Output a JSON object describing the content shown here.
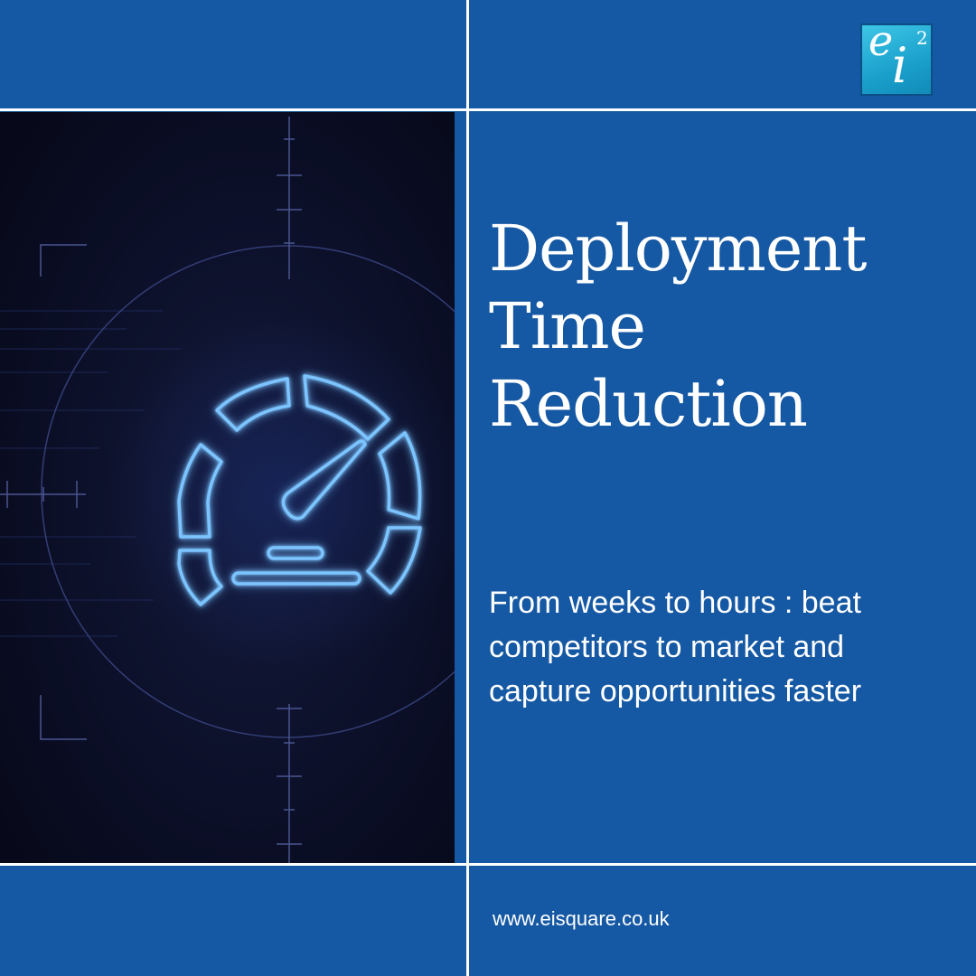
{
  "brand": {
    "logo_text": "ei",
    "logo_superscript": "2",
    "website": "www.eisquare.co.uk"
  },
  "main": {
    "title_lines": [
      "Deployment",
      "Time",
      "Reduction"
    ],
    "subtitle_lines": [
      "From weeks to hours : beat",
      "competitors to market and",
      "capture opportunities faster"
    ]
  },
  "illustration": {
    "subject": "speedometer-icon"
  },
  "colors": {
    "background": "#1558a3",
    "grid_lines": "#ffffff",
    "art_background": "#0b0f24",
    "glow": "#4fa8ff",
    "logo": "#1aa0cc"
  }
}
